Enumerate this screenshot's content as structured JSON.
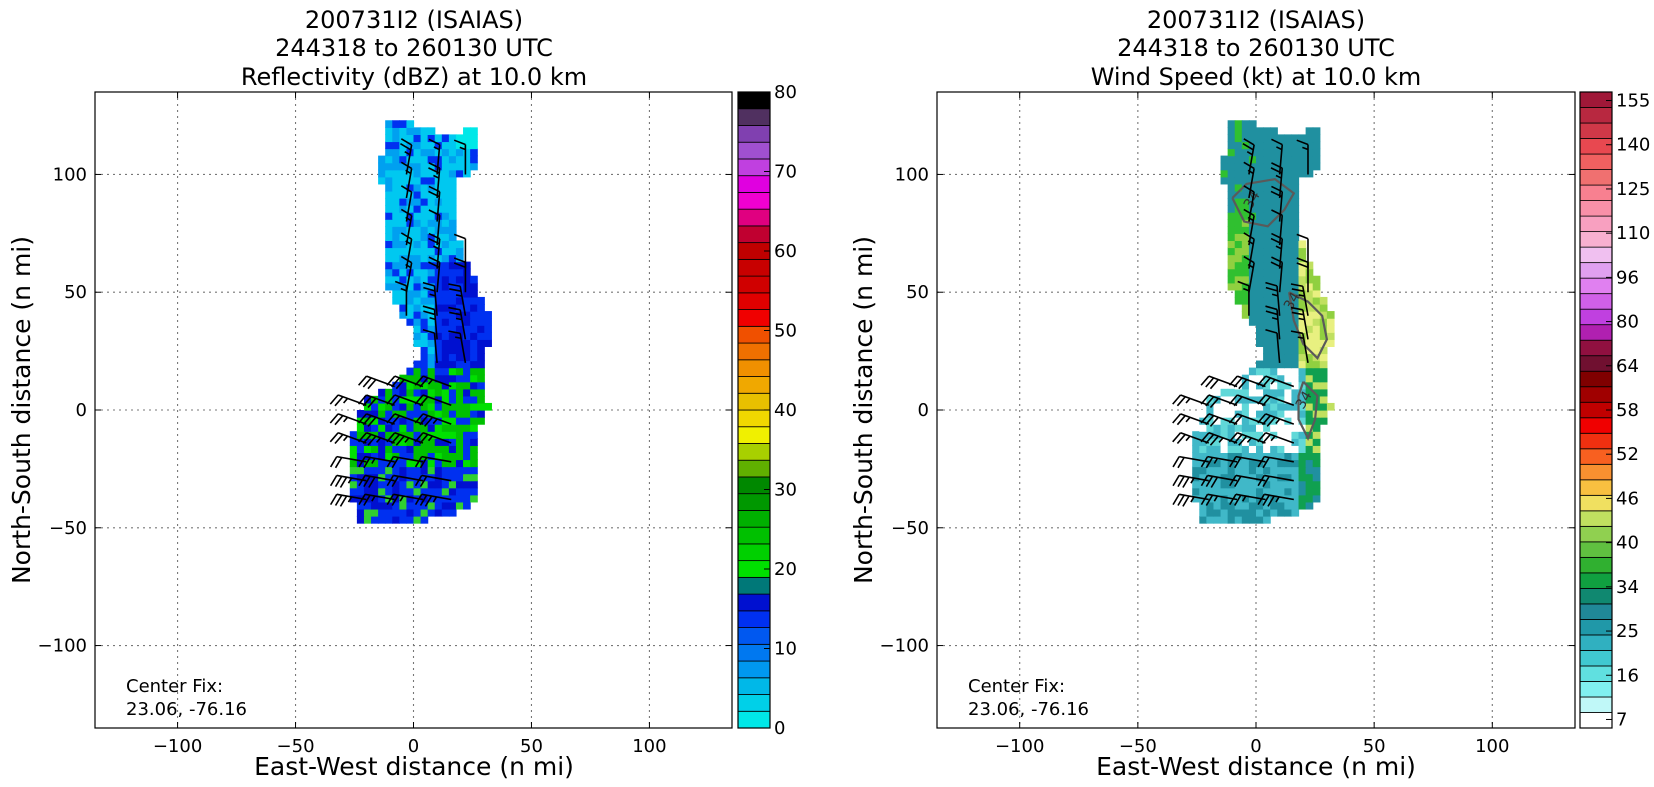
{
  "chart_data": [
    {
      "type": "heatmap",
      "title_lines": [
        "200731I2 (ISAIAS)",
        "244318 to 260130 UTC",
        "Reflectivity (dBZ) at 10.0 km"
      ],
      "xlabel": "East-West distance (n mi)",
      "ylabel": "North-South distance (n mi)",
      "xlim": [
        -135,
        135
      ],
      "ylim": [
        -135,
        135
      ],
      "xticks": [
        -100,
        -50,
        0,
        50,
        100
      ],
      "yticks": [
        -100,
        -50,
        0,
        50,
        100
      ],
      "grid": true,
      "annotation": [
        "Center Fix:",
        "23.06, -76.16"
      ],
      "colorbar": {
        "range": [
          0,
          80
        ],
        "ticks": [
          0,
          10,
          20,
          30,
          40,
          50,
          60,
          70,
          80
        ],
        "colors": [
          "#00e8e8",
          "#00d0e8",
          "#00b8e8",
          "#0098f0",
          "#0078f0",
          "#0058f0",
          "#0030f0",
          "#0010d0",
          "#007878",
          "#00e000",
          "#00d000",
          "#00c000",
          "#00b000",
          "#009800",
          "#008800",
          "#60b000",
          "#a8d000",
          "#f0f000",
          "#f0d800",
          "#e8c000",
          "#f0a800",
          "#f09000",
          "#f07000",
          "#f05000",
          "#f00000",
          "#e00000",
          "#d00000",
          "#c80000",
          "#c00000",
          "#c00030",
          "#e00080",
          "#f000d0",
          "#e000e0",
          "#c040e0",
          "#a050d0",
          "#8040b0",
          "#503060",
          "#000000"
        ]
      },
      "field_colors": [
        "#00c8f0",
        "#00a0f0",
        "#0030f0",
        "#0010d0",
        "#00c000",
        "#00e000",
        "#30d030",
        "#00e8e8"
      ]
    },
    {
      "type": "heatmap",
      "title_lines": [
        "200731I2 (ISAIAS)",
        "244318 to 260130 UTC",
        "Wind Speed (kt) at 10.0 km"
      ],
      "xlabel": "East-West distance (n mi)",
      "ylabel": "North-South distance (n mi)",
      "xlim": [
        -135,
        135
      ],
      "ylim": [
        -135,
        135
      ],
      "xticks": [
        -100,
        -50,
        0,
        50,
        100
      ],
      "yticks": [
        -100,
        -50,
        0,
        50,
        100
      ],
      "grid": true,
      "annotation": [
        "Center Fix:",
        "23.06, -76.16"
      ],
      "contour_labels": [
        "34",
        "34",
        "34"
      ],
      "colorbar": {
        "ticks": [
          "7",
          "16",
          "25",
          "34",
          "40",
          "46",
          "52",
          "58",
          "64",
          "80",
          "96",
          "110",
          "125",
          "140",
          "155"
        ],
        "colors": [
          "#ffffff",
          "#c0f8f8",
          "#80f0f0",
          "#60e0e0",
          "#40c8d0",
          "#30b0c0",
          "#2098a8",
          "#208898",
          "#108870",
          "#10a040",
          "#30b030",
          "#60c040",
          "#90d050",
          "#c0e060",
          "#f0e060",
          "#f8c040",
          "#f89030",
          "#f86020",
          "#f03010",
          "#f00000",
          "#c00000",
          "#a00000",
          "#800000",
          "#701030",
          "#901040",
          "#b020b0",
          "#c040e0",
          "#d060e8",
          "#e080f0",
          "#e0a0f0",
          "#f0c0f0",
          "#f8b0d0",
          "#f8a0c0",
          "#f890a8",
          "#f88090",
          "#f07070",
          "#f06060",
          "#e84850",
          "#d03848",
          "#b82840",
          "#a01838"
        ]
      },
      "field_colors": [
        "#2090a0",
        "#40b8c8",
        "#60d8d8",
        "#10a050",
        "#30c030",
        "#90d040",
        "#c0e060",
        "#e8f080",
        "#ffffff"
      ]
    }
  ]
}
